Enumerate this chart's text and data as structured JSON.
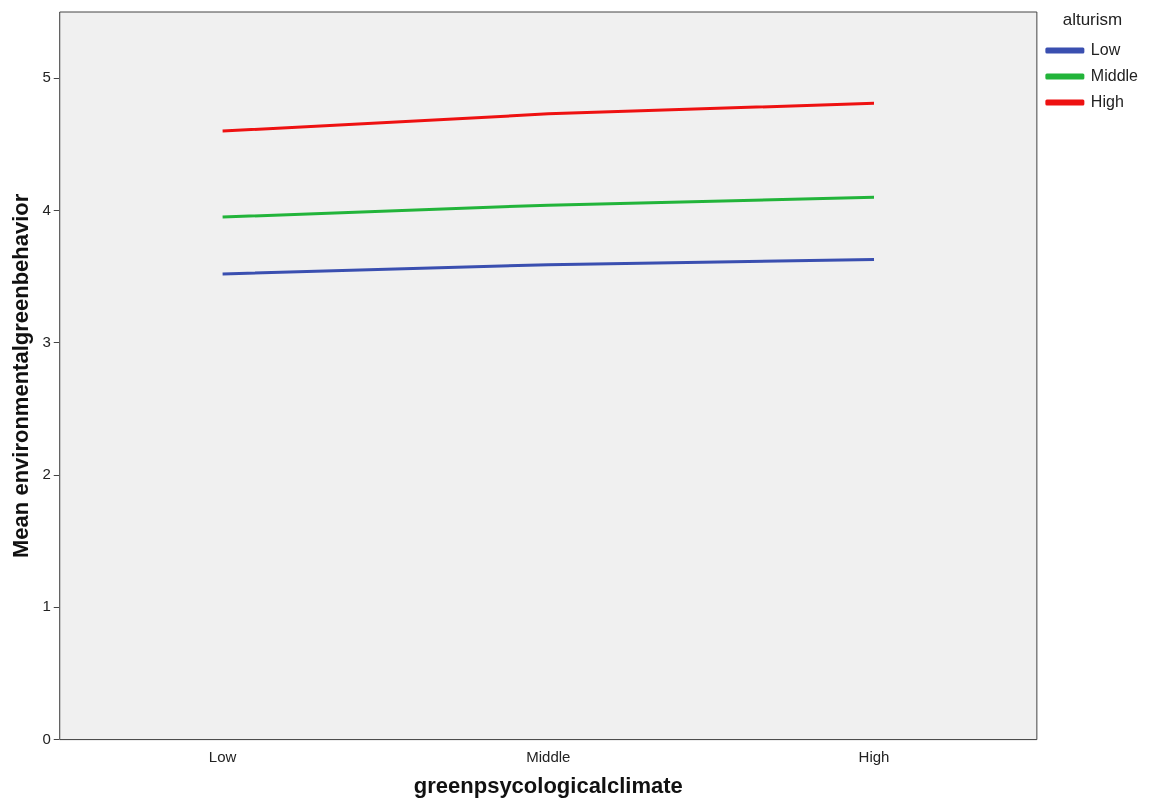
{
  "chart_data": {
    "type": "line",
    "xlabel": "greenpsycologicalclimate",
    "ylabel": "Mean environmentalgreenbehavior",
    "legend_title": "alturism",
    "categories": [
      "Low",
      "Middle",
      "High"
    ],
    "series": [
      {
        "name": "Low",
        "color": "#3a4fb0",
        "values": [
          3.52,
          3.59,
          3.63
        ]
      },
      {
        "name": "Middle",
        "color": "#22b43a",
        "values": [
          3.95,
          4.04,
          4.1
        ]
      },
      {
        "name": "High",
        "color": "#ee1111",
        "values": [
          4.6,
          4.73,
          4.81
        ]
      }
    ],
    "ylim": [
      0,
      5.5
    ],
    "yticks": [
      0,
      1,
      2,
      3,
      4,
      5
    ],
    "grid": false,
    "legend": "right",
    "marker": "none",
    "line_style": "solid"
  }
}
